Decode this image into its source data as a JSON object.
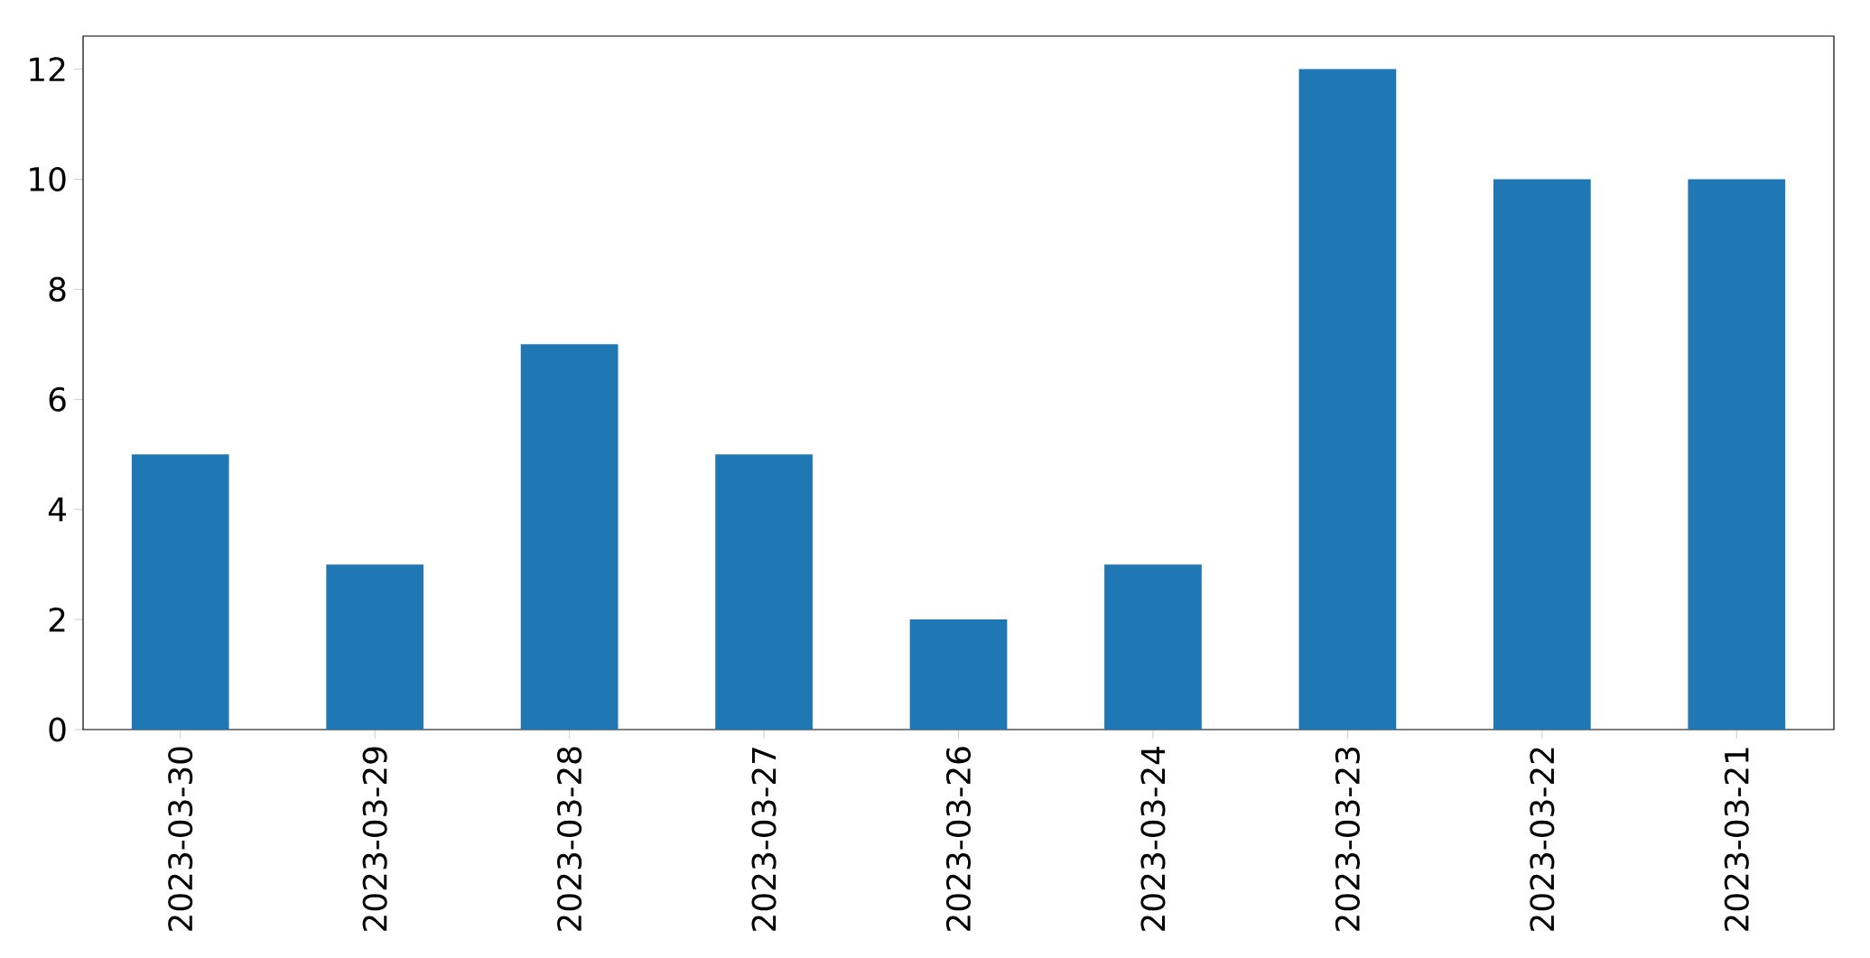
{
  "chart_data": {
    "type": "bar",
    "categories": [
      "2023-03-30",
      "2023-03-29",
      "2023-03-28",
      "2023-03-27",
      "2023-03-26",
      "2023-03-24",
      "2023-03-23",
      "2023-03-22",
      "2023-03-21"
    ],
    "values": [
      5,
      3,
      7,
      5,
      2,
      3,
      12,
      10,
      10
    ],
    "color": "#1f77b4",
    "ylim": [
      0,
      12.6
    ],
    "yticks": [
      0,
      2,
      4,
      6,
      8,
      10,
      12
    ]
  }
}
